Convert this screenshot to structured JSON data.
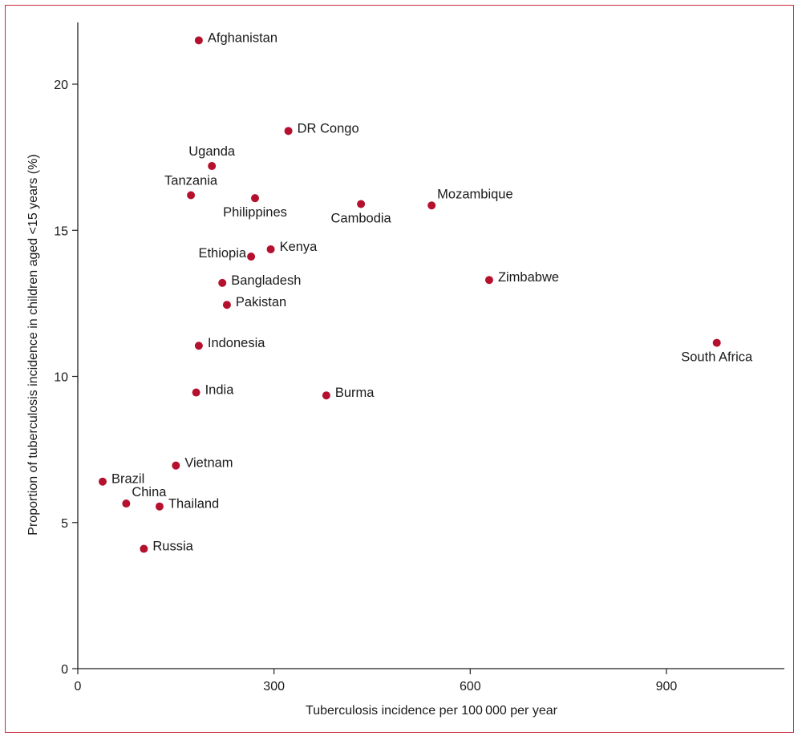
{
  "chart_data": {
    "type": "scatter",
    "xlabel": "Tuberculosis incidence per 100 000 per year",
    "ylabel": "Proportion of tuberculosis incidence in children aged <15 years (%)",
    "xlim": [
      0,
      1070
    ],
    "ylim": [
      0,
      22.2
    ],
    "x_ticks": [
      0,
      300,
      600,
      900
    ],
    "y_ticks": [
      0,
      5,
      10,
      15,
      20
    ],
    "grid": false,
    "marker_color": "#b5112f",
    "points": [
      {
        "label": "Afghanistan",
        "x": 185,
        "y": 21.5,
        "label_pos": "right"
      },
      {
        "label": "DR Congo",
        "x": 322,
        "y": 18.4,
        "label_pos": "right"
      },
      {
        "label": "Uganda",
        "x": 205,
        "y": 17.2,
        "label_pos": "above"
      },
      {
        "label": "Tanzania",
        "x": 173,
        "y": 16.2,
        "label_pos": "above"
      },
      {
        "label": "Philippines",
        "x": 271,
        "y": 16.1,
        "label_pos": "below"
      },
      {
        "label": "Cambodia",
        "x": 433,
        "y": 15.9,
        "label_pos": "below"
      },
      {
        "label": "Mozambique",
        "x": 541,
        "y": 15.85,
        "label_pos": "above-right"
      },
      {
        "label": "Kenya",
        "x": 295,
        "y": 14.35,
        "label_pos": "right"
      },
      {
        "label": "Ethiopia",
        "x": 265,
        "y": 14.1,
        "label_pos": "left"
      },
      {
        "label": "Bangladesh",
        "x": 221,
        "y": 13.2,
        "label_pos": "right"
      },
      {
        "label": "Zimbabwe",
        "x": 629,
        "y": 13.3,
        "label_pos": "right"
      },
      {
        "label": "Pakistan",
        "x": 228,
        "y": 12.45,
        "label_pos": "right"
      },
      {
        "label": "South Africa",
        "x": 977,
        "y": 11.15,
        "label_pos": "below"
      },
      {
        "label": "Indonesia",
        "x": 185,
        "y": 11.05,
        "label_pos": "right"
      },
      {
        "label": "India",
        "x": 181,
        "y": 9.45,
        "label_pos": "right"
      },
      {
        "label": "Burma",
        "x": 380,
        "y": 9.35,
        "label_pos": "right"
      },
      {
        "label": "Vietnam",
        "x": 150,
        "y": 6.95,
        "label_pos": "right"
      },
      {
        "label": "Brazil",
        "x": 38,
        "y": 6.4,
        "label_pos": "right"
      },
      {
        "label": "China",
        "x": 74,
        "y": 5.65,
        "label_pos": "above-right"
      },
      {
        "label": "Thailand",
        "x": 125,
        "y": 5.55,
        "label_pos": "right"
      },
      {
        "label": "Russia",
        "x": 101,
        "y": 4.1,
        "label_pos": "right"
      }
    ]
  }
}
